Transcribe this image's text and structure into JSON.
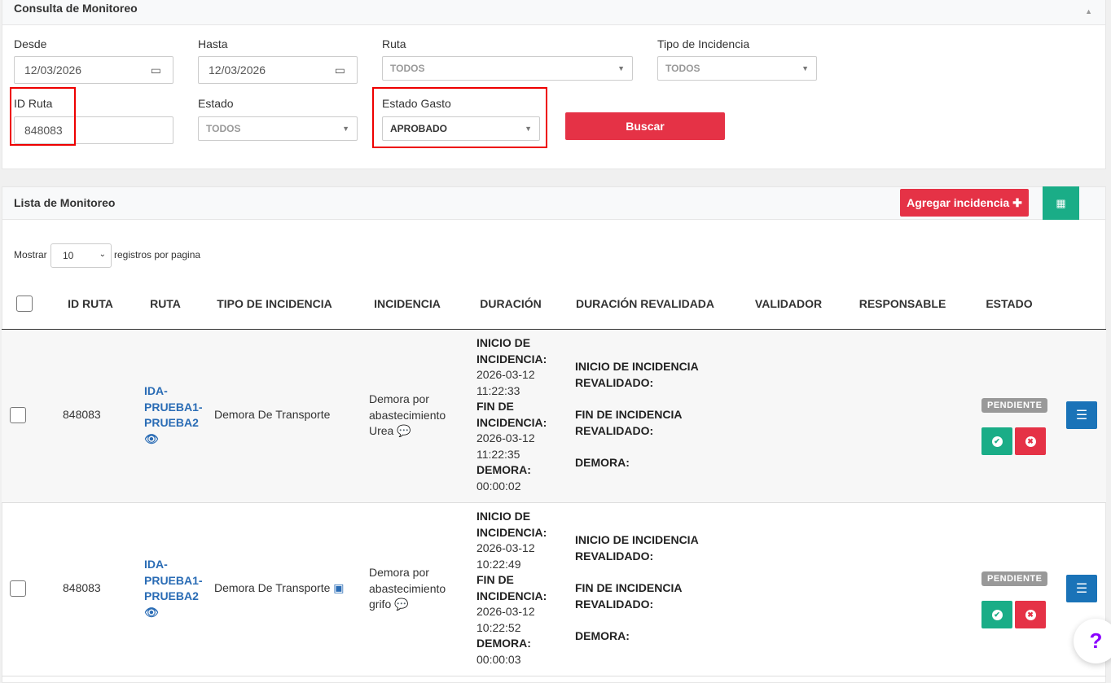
{
  "filters": {
    "title": "Consulta de Monitoreo",
    "desde_label": "Desde",
    "desde_value": "12/03/2026",
    "hasta_label": "Hasta",
    "hasta_value": "12/03/2026",
    "ruta_label": "Ruta",
    "ruta_value": "TODOS",
    "tipo_label": "Tipo de Incidencia",
    "tipo_value": "TODOS",
    "id_ruta_label": "ID Ruta",
    "id_ruta_value": "848083",
    "estado_label": "Estado",
    "estado_value": "TODOS",
    "estado_gasto_label": "Estado Gasto",
    "estado_gasto_value": "APROBADO",
    "buscar": "Buscar"
  },
  "list": {
    "title": "Lista de Monitoreo",
    "add_label": "Agregar incidencia",
    "show_label": "Mostrar",
    "show_value": "10",
    "per_page": "registros por pagina",
    "columns": [
      "ID RUTA",
      "RUTA",
      "TIPO DE INCIDENCIA",
      "INCIDENCIA",
      "DURACIÓN",
      "DURACIÓN REVALIDADA",
      "VALIDADOR",
      "RESPONSABLE",
      "ESTADO"
    ],
    "rows": [
      {
        "id": "848083",
        "ruta": [
          "IDA-",
          "PRUEBA1-",
          "PRUEBA2"
        ],
        "tipo": "Demora De Transporte",
        "incidencia": [
          "Demora por",
          "abastecimiento",
          "Urea"
        ],
        "inicio_label": "INICIO DE INCIDENCIA:",
        "inicio_date": "2026-03-12",
        "inicio_time": "11:22:33",
        "fin_label": "FIN DE INCIDENCIA:",
        "fin_date": "2026-03-12",
        "fin_time": "11:22:35",
        "demora_label": "DEMORA:",
        "demora": "00:00:02",
        "rev_inicio": "INICIO DE INCIDENCIA REVALIDADO:",
        "rev_fin": "FIN DE INCIDENCIA REVALIDADO:",
        "rev_demora": "DEMORA:",
        "estado": "PENDIENTE"
      },
      {
        "id": "848083",
        "ruta": [
          "IDA-",
          "PRUEBA1-",
          "PRUEBA2"
        ],
        "tipo": "Demora De Transporte",
        "incidencia": [
          "Demora por",
          "abastecimiento",
          "grifo"
        ],
        "inicio_label": "INICIO DE INCIDENCIA:",
        "inicio_date": "2026-03-12",
        "inicio_time": "10:22:49",
        "fin_label": "FIN DE INCIDENCIA:",
        "fin_date": "2026-03-12",
        "fin_time": "10:22:52",
        "demora_label": "DEMORA:",
        "demora": "00:00:03",
        "rev_inicio": "INICIO DE INCIDENCIA REVALIDADO:",
        "rev_fin": "FIN DE INCIDENCIA REVALIDADO:",
        "rev_demora": "DEMORA:",
        "estado": "PENDIENTE"
      }
    ]
  },
  "colors": {
    "red": "#e53246",
    "green": "#1aad87",
    "blue": "#1a73b8",
    "badge": "#999999",
    "help": "#8a00ff"
  }
}
